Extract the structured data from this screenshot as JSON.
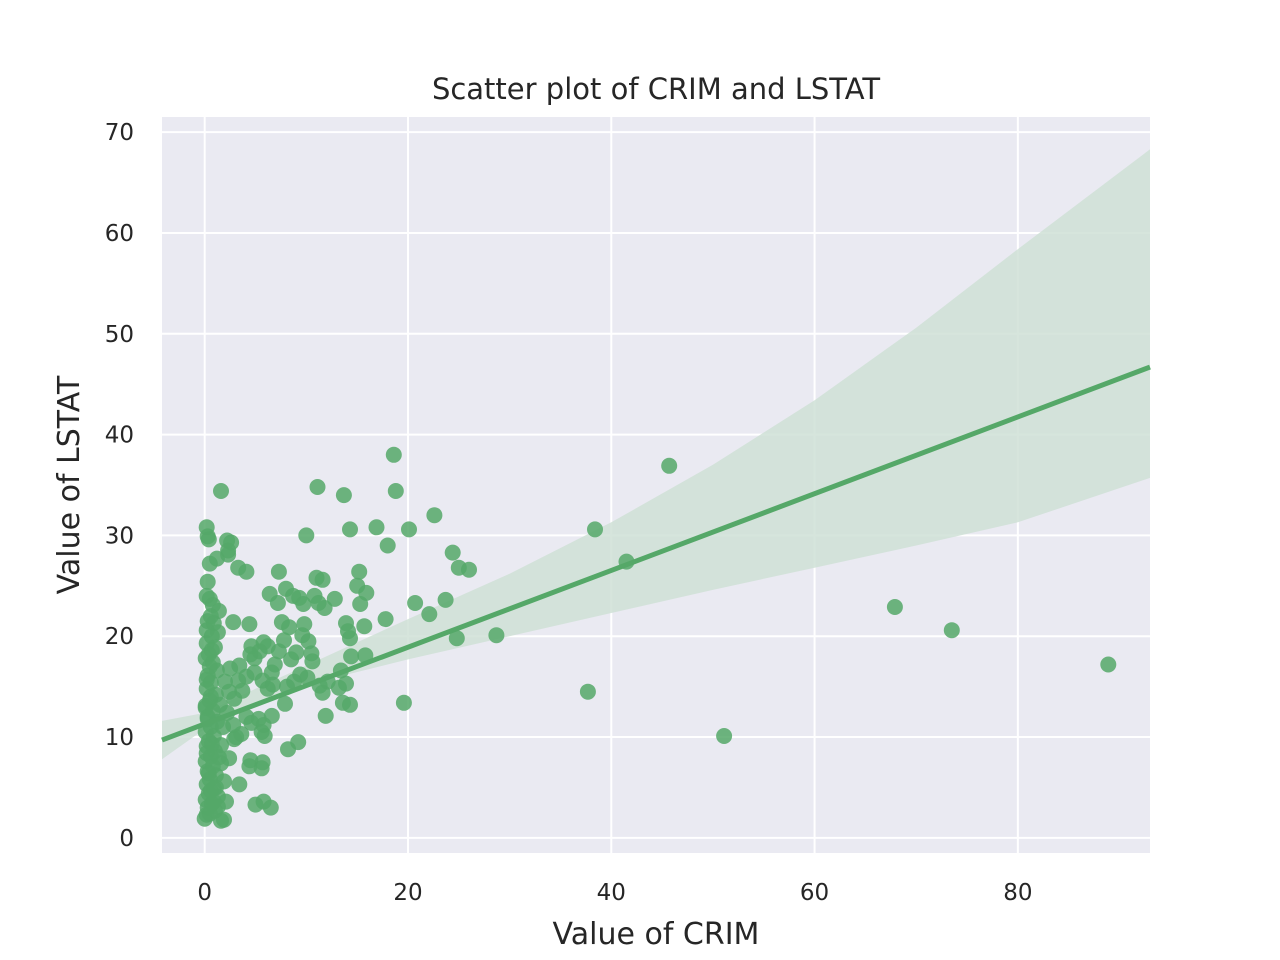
{
  "chart_data": {
    "type": "scatter",
    "title": "Scatter plot of CRIM and LSTAT",
    "xlabel": "Value of CRIM",
    "ylabel": "Value of LSTAT",
    "xlim": [
      -4.2,
      93
    ],
    "ylim": [
      -1.5,
      71.5
    ],
    "xticks": [
      0,
      20,
      40,
      60,
      80
    ],
    "xtick_labels": [
      "0",
      "20",
      "40",
      "60",
      "80"
    ],
    "yticks": [
      0,
      10,
      20,
      30,
      40,
      50,
      60,
      70
    ],
    "ytick_labels": [
      "0",
      "10",
      "20",
      "30",
      "40",
      "50",
      "60",
      "70"
    ],
    "grid": true,
    "legend": "none",
    "colors": {
      "background": "#eaeaf2",
      "grid": "#ffffff",
      "points": "#55a868",
      "ci_band": "#cfe0d6"
    },
    "regression": {
      "line": [
        [
          -4.2,
          9.7
        ],
        [
          93,
          46.7
        ]
      ],
      "ci_band": {
        "x": [
          -4.2,
          0,
          5,
          10,
          20,
          30,
          40,
          50,
          60,
          70,
          80,
          93
        ],
        "lower": [
          7.8,
          10.8,
          13.2,
          15.2,
          17.7,
          20.0,
          22.3,
          24.6,
          26.8,
          29.0,
          31.3,
          35.7
        ],
        "upper": [
          11.6,
          12.4,
          14.8,
          17.1,
          21.7,
          26.2,
          31.3,
          37.0,
          43.4,
          50.6,
          58.4,
          68.3
        ]
      }
    },
    "series": [
      {
        "points": [
          [
            1.6,
            34.4
          ],
          [
            11.1,
            34.8
          ],
          [
            13.7,
            34.0
          ],
          [
            18.6,
            38.0
          ],
          [
            18.8,
            34.4
          ],
          [
            45.7,
            36.9
          ],
          [
            38.4,
            30.6
          ],
          [
            41.5,
            27.4
          ],
          [
            22.6,
            32.0
          ],
          [
            16.9,
            30.8
          ],
          [
            14.3,
            30.6
          ],
          [
            20.1,
            30.6
          ],
          [
            18.0,
            29.0
          ],
          [
            10.0,
            30.0
          ],
          [
            24.4,
            28.3
          ],
          [
            25.0,
            26.8
          ],
          [
            26.0,
            26.6
          ],
          [
            15.2,
            26.4
          ],
          [
            15.0,
            25.0
          ],
          [
            15.9,
            24.3
          ],
          [
            23.7,
            23.6
          ],
          [
            20.7,
            23.3
          ],
          [
            22.1,
            22.2
          ],
          [
            17.8,
            21.7
          ],
          [
            15.3,
            23.2
          ],
          [
            15.7,
            21.0
          ],
          [
            28.7,
            20.1
          ],
          [
            24.8,
            19.8
          ],
          [
            19.6,
            13.4
          ],
          [
            37.7,
            14.5
          ],
          [
            51.1,
            10.1
          ],
          [
            67.9,
            22.9
          ],
          [
            73.5,
            20.6
          ],
          [
            88.9,
            17.2
          ],
          [
            11.6,
            25.6
          ],
          [
            11.0,
            25.8
          ],
          [
            10.8,
            24.0
          ],
          [
            11.2,
            23.3
          ],
          [
            11.8,
            22.8
          ],
          [
            12.8,
            23.7
          ],
          [
            13.9,
            21.3
          ],
          [
            14.1,
            20.5
          ],
          [
            14.3,
            19.8
          ],
          [
            14.4,
            18.0
          ],
          [
            15.8,
            18.1
          ],
          [
            13.4,
            16.6
          ],
          [
            13.9,
            15.3
          ],
          [
            13.2,
            14.9
          ],
          [
            14.3,
            13.2
          ],
          [
            13.6,
            13.4
          ],
          [
            12.1,
            15.5
          ],
          [
            11.6,
            14.4
          ],
          [
            11.9,
            12.1
          ],
          [
            11.3,
            15.1
          ],
          [
            10.5,
            18.3
          ],
          [
            10.2,
            19.5
          ],
          [
            9.8,
            21.2
          ],
          [
            9.7,
            23.2
          ],
          [
            9.3,
            23.8
          ],
          [
            8.7,
            24.0
          ],
          [
            8.0,
            24.7
          ],
          [
            7.3,
            26.4
          ],
          [
            6.4,
            24.2
          ],
          [
            7.2,
            23.3
          ],
          [
            7.6,
            21.4
          ],
          [
            8.3,
            20.9
          ],
          [
            9.6,
            20.1
          ],
          [
            9.0,
            18.4
          ],
          [
            8.5,
            17.7
          ],
          [
            7.8,
            19.6
          ],
          [
            7.3,
            18.5
          ],
          [
            6.9,
            17.2
          ],
          [
            6.6,
            16.4
          ],
          [
            6.2,
            19.0
          ],
          [
            5.8,
            19.4
          ],
          [
            5.4,
            18.5
          ],
          [
            4.9,
            17.8
          ],
          [
            4.6,
            19.0
          ],
          [
            4.5,
            18.2
          ],
          [
            4.9,
            16.4
          ],
          [
            5.7,
            15.6
          ],
          [
            6.2,
            14.8
          ],
          [
            6.7,
            15.2
          ],
          [
            7.9,
            13.3
          ],
          [
            8.1,
            15.0
          ],
          [
            8.8,
            15.5
          ],
          [
            9.4,
            16.2
          ],
          [
            10.1,
            15.9
          ],
          [
            10.6,
            17.5
          ],
          [
            6.6,
            12.1
          ],
          [
            5.8,
            11.2
          ],
          [
            5.3,
            11.8
          ],
          [
            4.6,
            11.4
          ],
          [
            4.1,
            12.0
          ],
          [
            3.7,
            14.6
          ],
          [
            3.3,
            15.6
          ],
          [
            3.4,
            17.1
          ],
          [
            4.1,
            16.0
          ],
          [
            4.4,
            21.2
          ],
          [
            2.8,
            21.4
          ],
          [
            3.3,
            26.8
          ],
          [
            4.1,
            26.4
          ],
          [
            2.3,
            28.5
          ],
          [
            2.6,
            29.3
          ],
          [
            2.2,
            29.5
          ],
          [
            2.3,
            28.1
          ],
          [
            0.2,
            30.8
          ],
          [
            0.3,
            29.9
          ],
          [
            0.4,
            29.6
          ],
          [
            1.2,
            27.7
          ],
          [
            0.5,
            27.2
          ],
          [
            0.3,
            25.4
          ],
          [
            0.2,
            24.0
          ],
          [
            0.5,
            23.7
          ],
          [
            0.8,
            23.1
          ],
          [
            1.4,
            22.5
          ],
          [
            0.6,
            22.0
          ],
          [
            0.3,
            21.5
          ],
          [
            0.9,
            21.3
          ],
          [
            1.3,
            20.4
          ],
          [
            0.7,
            20.0
          ],
          [
            0.2,
            19.3
          ],
          [
            1.0,
            18.9
          ],
          [
            0.4,
            18.2
          ],
          [
            0.8,
            17.4
          ],
          [
            1.2,
            16.6
          ],
          [
            0.3,
            16.1
          ],
          [
            0.6,
            15.4
          ],
          [
            0.2,
            14.8
          ],
          [
            1.1,
            14.2
          ],
          [
            0.5,
            13.6
          ],
          [
            0.1,
            13.1
          ],
          [
            0.8,
            12.6
          ],
          [
            0.3,
            12.0
          ],
          [
            1.2,
            11.5
          ],
          [
            0.6,
            11.0
          ],
          [
            0.1,
            10.5
          ],
          [
            0.9,
            10.1
          ],
          [
            0.4,
            9.6
          ],
          [
            0.2,
            9.1
          ],
          [
            1.0,
            8.6
          ],
          [
            0.6,
            8.1
          ],
          [
            0.1,
            7.6
          ],
          [
            0.8,
            7.1
          ],
          [
            1.6,
            7.4
          ],
          [
            0.3,
            6.6
          ],
          [
            1.1,
            6.2
          ],
          [
            0.5,
            5.8
          ],
          [
            0.2,
            5.3
          ],
          [
            0.9,
            4.9
          ],
          [
            0.4,
            4.4
          ],
          [
            1.3,
            4.1
          ],
          [
            0.1,
            3.8
          ],
          [
            0.7,
            3.4
          ],
          [
            0.3,
            3.0
          ],
          [
            1.0,
            2.7
          ],
          [
            0.2,
            2.3
          ],
          [
            0.0,
            1.9
          ],
          [
            1.6,
            1.7
          ],
          [
            1.9,
            1.8
          ],
          [
            2.1,
            3.6
          ],
          [
            1.3,
            3.1
          ],
          [
            0.6,
            4.7
          ],
          [
            0.4,
            6.4
          ],
          [
            0.2,
            8.4
          ],
          [
            0.7,
            9.3
          ],
          [
            0.3,
            11.8
          ],
          [
            0.1,
            12.9
          ],
          [
            0.6,
            14.0
          ],
          [
            0.2,
            15.7
          ],
          [
            0.5,
            17.0
          ],
          [
            0.1,
            17.8
          ],
          [
            0.7,
            18.6
          ],
          [
            0.2,
            20.6
          ],
          [
            2.0,
            15.5
          ],
          [
            2.5,
            16.8
          ],
          [
            2.4,
            14.5
          ],
          [
            2.9,
            13.8
          ],
          [
            2.2,
            12.4
          ],
          [
            2.8,
            11.2
          ],
          [
            3.1,
            10.0
          ],
          [
            3.6,
            10.3
          ],
          [
            2.9,
            9.8
          ],
          [
            4.5,
            7.7
          ],
          [
            4.4,
            7.1
          ],
          [
            5.7,
            7.5
          ],
          [
            5.6,
            6.9
          ],
          [
            3.4,
            5.3
          ],
          [
            5.0,
            3.3
          ],
          [
            5.8,
            3.6
          ],
          [
            6.5,
            3.0
          ],
          [
            5.6,
            10.5
          ],
          [
            5.9,
            10.1
          ],
          [
            8.2,
            8.8
          ],
          [
            9.2,
            9.5
          ],
          [
            1.5,
            13.2
          ],
          [
            1.8,
            11.0
          ],
          [
            1.6,
            9.2
          ],
          [
            1.4,
            8.0
          ],
          [
            1.9,
            5.6
          ],
          [
            2.4,
            7.9
          ],
          [
            1.1,
            5.0
          ],
          [
            0.9,
            3.6
          ],
          [
            0.5,
            2.4
          ]
        ]
      }
    ]
  }
}
